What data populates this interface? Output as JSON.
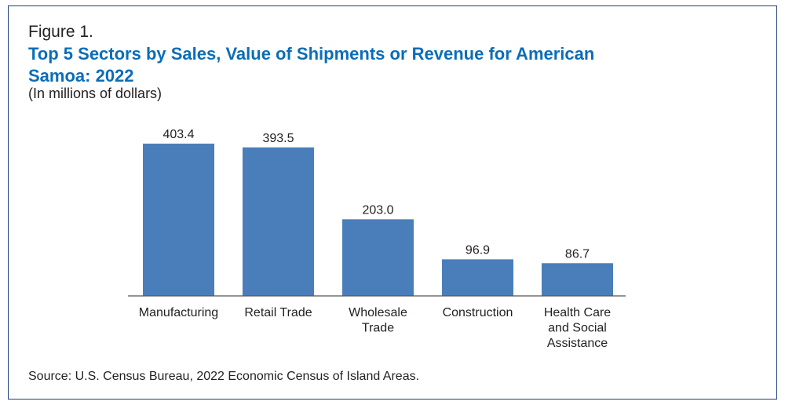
{
  "figure_label": "Figure 1.",
  "source": "Source: U.S. Census Bureau, 2022 Economic Census of Island Areas.",
  "colors": {
    "title": "#0b6db7",
    "bar": "#4a7ebb",
    "frame": "#1f3f7a"
  },
  "chart_data": {
    "type": "bar",
    "title": "Top 5 Sectors by Sales, Value of Shipments or Revenue for American Samoa: 2022",
    "subtitle": "(In millions of dollars)",
    "xlabel": "",
    "ylabel": "",
    "categories": [
      [
        "Manufacturing"
      ],
      [
        "Retail Trade"
      ],
      [
        "Wholesale",
        "Trade"
      ],
      [
        "Construction"
      ],
      [
        "Health Care",
        "and Social",
        "Assistance"
      ]
    ],
    "values": [
      403.4,
      393.5,
      203.0,
      96.9,
      86.7
    ],
    "value_labels": [
      "403.4",
      "393.5",
      "203.0",
      "96.9",
      "86.7"
    ],
    "ylim": [
      0,
      403.4
    ],
    "grid": false,
    "legend": "none"
  }
}
